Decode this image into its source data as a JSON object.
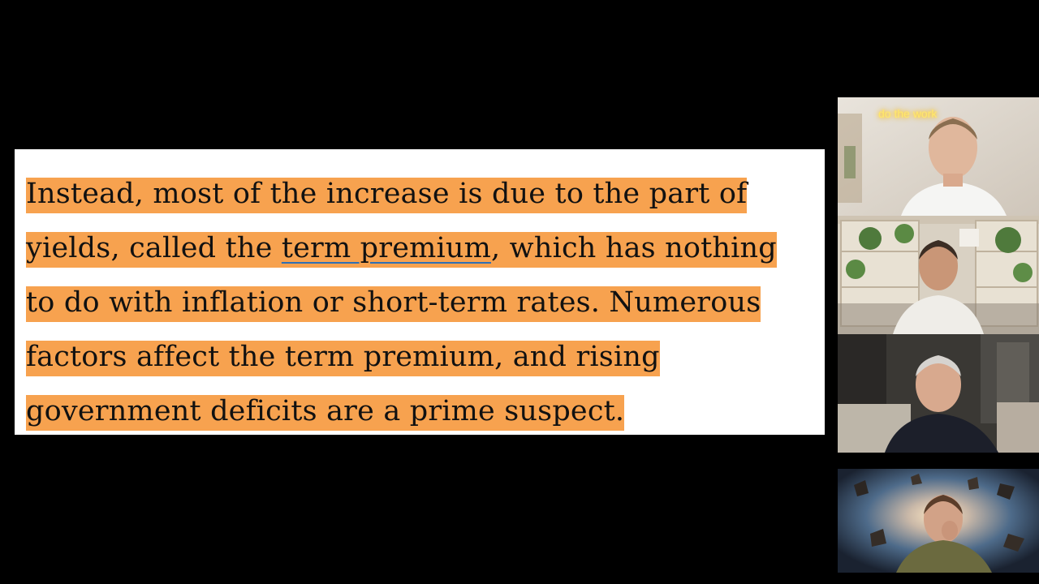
{
  "quote": {
    "lines": [
      {
        "parts": [
          {
            "text": "Instead, most of the increase is due to the part of",
            "link": false
          }
        ]
      },
      {
        "parts": [
          {
            "text": "yields, called the ",
            "link": false
          },
          {
            "text": "term premium",
            "link": true
          },
          {
            "text": ", which has nothing",
            "link": false
          }
        ]
      },
      {
        "parts": [
          {
            "text": "to do with inflation or short-term rates. Numerous",
            "link": false
          }
        ]
      },
      {
        "parts": [
          {
            "text": "factors affect the term premium, and rising",
            "link": false
          }
        ]
      },
      {
        "parts": [
          {
            "text": "government deficits are a prime suspect.",
            "link": false
          }
        ]
      }
    ],
    "highlight_color": "#f7a24f",
    "link_color": "#2f6fb3"
  },
  "participants": [
    {
      "id": "participant-1",
      "neon_sign": "do the work"
    },
    {
      "id": "participant-2"
    },
    {
      "id": "participant-3"
    },
    {
      "id": "participant-4"
    }
  ]
}
